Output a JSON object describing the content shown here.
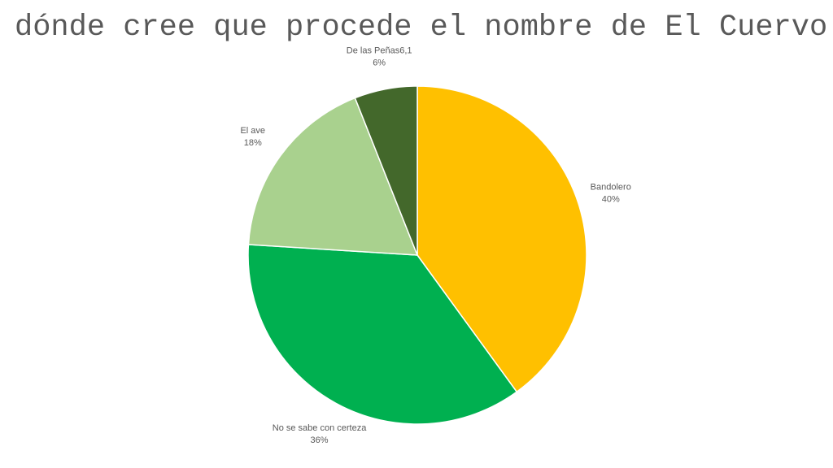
{
  "slide": {
    "title": "dónde cree que procede el nombre de El Cuervo"
  },
  "chart_data": {
    "type": "pie",
    "title": "",
    "legend": "none",
    "slices": [
      {
        "label": "Bandolero",
        "value": 40,
        "percent_label": "40%",
        "color": "#FFC000"
      },
      {
        "label": "No se sabe con certeza",
        "value": 36,
        "percent_label": "36%",
        "color": "#00B050"
      },
      {
        "label": "El ave",
        "value": 18,
        "percent_label": "18%",
        "color": "#A9D18E"
      },
      {
        "label": "De las Peñas6,1",
        "value": 6,
        "percent_label": "6%",
        "color": "#43682B"
      }
    ]
  }
}
